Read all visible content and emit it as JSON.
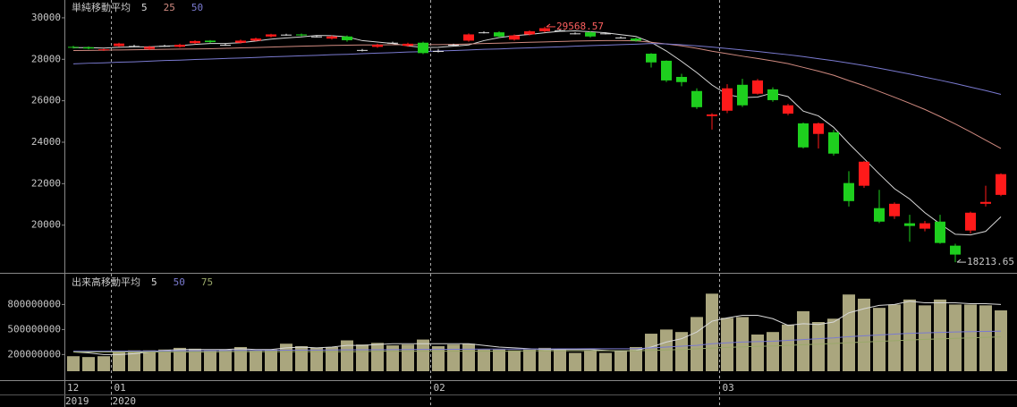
{
  "chart_data": [
    {
      "type": "candlestick",
      "legend_title": "単純移動平均",
      "categories": [
        "12",
        null,
        null,
        "01",
        null,
        null,
        null,
        null,
        null,
        null,
        null,
        null,
        null,
        null,
        null,
        null,
        null,
        null,
        null,
        null,
        null,
        null,
        null,
        null,
        "02",
        null,
        null,
        null,
        null,
        null,
        null,
        null,
        null,
        null,
        null,
        null,
        null,
        null,
        null,
        null,
        null,
        null,
        null,
        "03",
        null,
        null,
        null,
        null,
        null,
        null,
        null,
        null,
        null,
        null,
        null,
        null,
        null,
        null,
        null,
        null,
        null,
        null
      ],
      "years": [
        "2019",
        null,
        null,
        "2020",
        null,
        null,
        null,
        null,
        null,
        null,
        null,
        null,
        null,
        null,
        null,
        null,
        null,
        null,
        null,
        null,
        null,
        null,
        null,
        null,
        null,
        null,
        null,
        null,
        null,
        null,
        null,
        null,
        null,
        null,
        null,
        null,
        null,
        null,
        null,
        null,
        null,
        null,
        null,
        null,
        null,
        null,
        null,
        null,
        null,
        null,
        null,
        null,
        null,
        null,
        null,
        null,
        null,
        null,
        null,
        null,
        null,
        null
      ],
      "open": [
        28600,
        28580,
        28450,
        28640,
        28640,
        28500,
        28650,
        28600,
        28780,
        28900,
        28700,
        28800,
        28900,
        29100,
        29190,
        29200,
        29100,
        29000,
        29100,
        28450,
        28600,
        28800,
        28650,
        28800,
        28400,
        28700,
        28900,
        29300,
        29300,
        28950,
        29200,
        29350,
        29400,
        29250,
        29300,
        29250,
        29050,
        29000,
        28270,
        27930,
        27150,
        26470,
        25260,
        25520,
        26770,
        26340,
        26550,
        25380,
        24910,
        24400,
        24480,
        22030,
        21900,
        20820,
        20430,
        20090,
        19830,
        20170,
        19010,
        19740,
        21030,
        21460
      ],
      "high": [
        28650,
        28620,
        28520,
        28800,
        28700,
        28650,
        28700,
        28750,
        28920,
        28930,
        28750,
        28950,
        29050,
        29230,
        29230,
        29240,
        29150,
        29150,
        29150,
        28500,
        28750,
        28850,
        28800,
        28850,
        28500,
        28750,
        29250,
        29350,
        29350,
        29200,
        29400,
        29568.57,
        29450,
        29300,
        29350,
        29300,
        29100,
        29050,
        28300,
        27950,
        27300,
        26600,
        25400,
        26800,
        27060,
        27050,
        26650,
        25850,
        24950,
        24950,
        24600,
        22600,
        23100,
        21700,
        21100,
        20500,
        20200,
        20500,
        19100,
        20650,
        21900,
        22500
      ],
      "low": [
        28520,
        28480,
        28400,
        28600,
        28580,
        28450,
        28600,
        28560,
        28740,
        28780,
        28650,
        28760,
        28870,
        29050,
        29140,
        29100,
        29050,
        28950,
        28850,
        28380,
        28550,
        28750,
        28600,
        28250,
        28330,
        28640,
        28850,
        29250,
        29050,
        28900,
        29150,
        29300,
        29350,
        29200,
        29050,
        29200,
        29000,
        28850,
        27600,
        26900,
        26700,
        25600,
        24610,
        25400,
        25700,
        26300,
        25950,
        25300,
        23700,
        23700,
        23350,
        20900,
        21800,
        20100,
        20300,
        19200,
        19700,
        19100,
        18213.65,
        19600,
        20900,
        21400
      ],
      "close": [
        28560,
        28520,
        28480,
        28760,
        28640,
        28600,
        28650,
        28700,
        28880,
        28830,
        28700,
        28900,
        29000,
        29200,
        29190,
        29150,
        29100,
        29100,
        28920,
        28450,
        28700,
        28800,
        28750,
        28300,
        28400,
        28700,
        29200,
        29300,
        29100,
        29150,
        29350,
        29500,
        29400,
        29250,
        29100,
        29250,
        29050,
        28900,
        27850,
        26980,
        26900,
        25690,
        25340,
        26600,
        25780,
        26980,
        26030,
        25780,
        23750,
        24910,
        23450,
        21160,
        23060,
        20170,
        21030,
        19960,
        20090,
        19140,
        18580,
        20600,
        21120,
        22460
      ],
      "up_color": "#ff1a1a",
      "down_color": "#1ecf1e",
      "doji_color": "#dddddd",
      "ylim": [
        17700,
        30860
      ],
      "yticks": [
        20000,
        22000,
        24000,
        26000,
        28000,
        30000
      ],
      "series": [
        {
          "name": "5",
          "color": "#d8d8d8",
          "values": [
            28560,
            28560,
            28540,
            28580,
            28600,
            28600,
            28640,
            28660,
            28720,
            28760,
            28760,
            28800,
            28880,
            28970,
            29030,
            29080,
            29150,
            29140,
            29080,
            28900,
            28830,
            28760,
            28650,
            28570,
            28580,
            28630,
            28690,
            28900,
            29050,
            29140,
            29200,
            29280,
            29350,
            29370,
            29330,
            29280,
            29190,
            29100,
            28820,
            28400,
            27900,
            27360,
            26760,
            26300,
            26150,
            26180,
            26380,
            26200,
            25500,
            25270,
            24720,
            23940,
            23210,
            22470,
            21760,
            21260,
            20600,
            20060,
            19560,
            19530,
            19700,
            20400
          ]
        },
        {
          "name": "25",
          "color": "#d08a80",
          "values": [
            28420,
            28430,
            28440,
            28450,
            28460,
            28470,
            28480,
            28490,
            28500,
            28510,
            28530,
            28550,
            28570,
            28590,
            28610,
            28630,
            28650,
            28670,
            28680,
            28690,
            28690,
            28700,
            28700,
            28710,
            28710,
            28720,
            28740,
            28760,
            28780,
            28800,
            28820,
            28840,
            28860,
            28880,
            28890,
            28900,
            28900,
            28890,
            28820,
            28740,
            28650,
            28530,
            28390,
            28270,
            28150,
            28040,
            27920,
            27790,
            27610,
            27430,
            27230,
            26970,
            26730,
            26450,
            26170,
            25880,
            25580,
            25240,
            24880,
            24500,
            24100,
            23700
          ]
        },
        {
          "name": "50",
          "color": "#7a7ad0",
          "values": [
            27780,
            27810,
            27830,
            27860,
            27880,
            27910,
            27940,
            27960,
            27990,
            28010,
            28040,
            28060,
            28090,
            28120,
            28140,
            28170,
            28190,
            28220,
            28240,
            28270,
            28300,
            28320,
            28350,
            28370,
            28400,
            28420,
            28450,
            28480,
            28500,
            28530,
            28550,
            28580,
            28600,
            28630,
            28660,
            28680,
            28710,
            28730,
            28760,
            28740,
            28700,
            28650,
            28590,
            28520,
            28450,
            28380,
            28300,
            28220,
            28130,
            28030,
            27930,
            27820,
            27700,
            27570,
            27430,
            27290,
            27140,
            26990,
            26830,
            26660,
            26490,
            26310
          ]
        }
      ]
    },
    {
      "type": "bar",
      "legend_title": "出来高移動平均",
      "color": "#aaa67e",
      "values": [
        180000000,
        170000000,
        180000000,
        240000000,
        250000000,
        250000000,
        260000000,
        280000000,
        270000000,
        250000000,
        260000000,
        290000000,
        250000000,
        260000000,
        330000000,
        300000000,
        280000000,
        290000000,
        370000000,
        320000000,
        340000000,
        310000000,
        320000000,
        380000000,
        300000000,
        320000000,
        330000000,
        260000000,
        260000000,
        250000000,
        260000000,
        280000000,
        270000000,
        220000000,
        250000000,
        220000000,
        250000000,
        290000000,
        450000000,
        500000000,
        470000000,
        650000000,
        930000000,
        640000000,
        650000000,
        440000000,
        470000000,
        560000000,
        720000000,
        590000000,
        630000000,
        920000000,
        870000000,
        760000000,
        800000000,
        860000000,
        790000000,
        860000000,
        800000000,
        800000000,
        790000000,
        730000000
      ],
      "ylim": [
        0,
        1180000000
      ],
      "yticks": [
        200000000,
        500000000,
        800000000
      ],
      "series": [
        {
          "name": "5",
          "color": "#d8d8d8",
          "values": [
            230000000,
            220000000,
            200000000,
            200000000,
            210000000,
            230000000,
            250000000,
            260000000,
            260000000,
            260000000,
            260000000,
            270000000,
            260000000,
            260000000,
            280000000,
            290000000,
            280000000,
            290000000,
            310000000,
            310000000,
            320000000,
            330000000,
            330000000,
            330000000,
            330000000,
            330000000,
            330000000,
            310000000,
            290000000,
            280000000,
            270000000,
            260000000,
            260000000,
            260000000,
            260000000,
            250000000,
            240000000,
            250000000,
            290000000,
            350000000,
            390000000,
            470000000,
            600000000,
            640000000,
            670000000,
            670000000,
            630000000,
            550000000,
            570000000,
            560000000,
            590000000,
            700000000,
            750000000,
            790000000,
            800000000,
            840000000,
            820000000,
            820000000,
            820000000,
            810000000,
            810000000,
            800000000
          ]
        },
        {
          "name": "50",
          "color": "#7a7ad0",
          "values": [
            240000000,
            240000000,
            240000000,
            241000000,
            242000000,
            243000000,
            244000000,
            245000000,
            246000000,
            247000000,
            248000000,
            249000000,
            250000000,
            251000000,
            252000000,
            253000000,
            254000000,
            255000000,
            256000000,
            257000000,
            258000000,
            259000000,
            260000000,
            261000000,
            262000000,
            263000000,
            264000000,
            265000000,
            266000000,
            266000000,
            267000000,
            267000000,
            268000000,
            268000000,
            269000000,
            269000000,
            270000000,
            270000000,
            280000000,
            290000000,
            300000000,
            310000000,
            330000000,
            340000000,
            350000000,
            355000000,
            360000000,
            370000000,
            380000000,
            390000000,
            400000000,
            415000000,
            425000000,
            435000000,
            445000000,
            455000000,
            460000000,
            465000000,
            470000000,
            475000000,
            478000000,
            480000000
          ]
        },
        {
          "name": "75",
          "color": "#9aa86a",
          "values": [
            230000000,
            230000000,
            230000000,
            230000000,
            230000000,
            230000000,
            230000000,
            230000000,
            230000000,
            230000000,
            235000000,
            235000000,
            235000000,
            235000000,
            235000000,
            235000000,
            235000000,
            235000000,
            235000000,
            235000000,
            240000000,
            240000000,
            240000000,
            240000000,
            240000000,
            240000000,
            240000000,
            240000000,
            240000000,
            240000000,
            245000000,
            245000000,
            245000000,
            245000000,
            245000000,
            245000000,
            245000000,
            245000000,
            250000000,
            255000000,
            260000000,
            268000000,
            278000000,
            285000000,
            292000000,
            298000000,
            303000000,
            310000000,
            318000000,
            325000000,
            332000000,
            342000000,
            350000000,
            358000000,
            366000000,
            374000000,
            382000000,
            388000000,
            394000000,
            400000000,
            406000000,
            412000000
          ]
        }
      ]
    }
  ]
}
